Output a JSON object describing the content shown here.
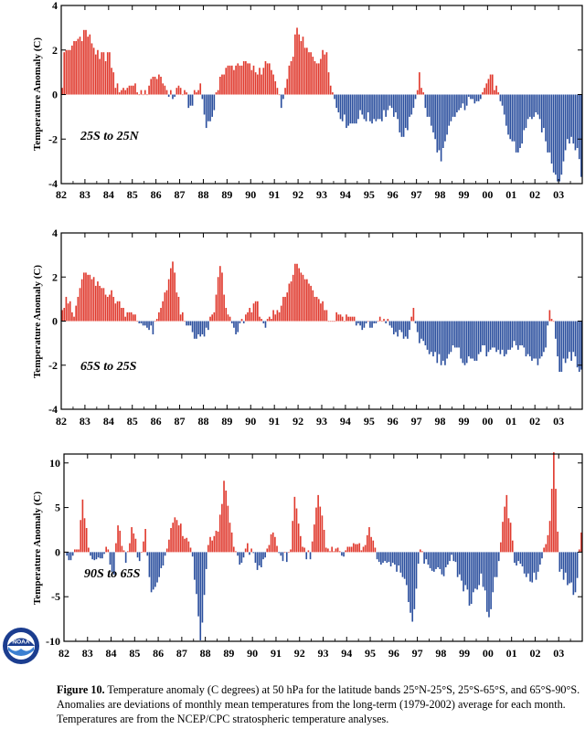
{
  "figure": {
    "ylabel": "Temperature Anomaly (C)",
    "x_tick_labels": [
      "82",
      "83",
      "84",
      "85",
      "86",
      "87",
      "88",
      "89",
      "90",
      "91",
      "92",
      "93",
      "94",
      "95",
      "96",
      "97",
      "98",
      "99",
      "00",
      "01",
      "02",
      "03"
    ],
    "colors": {
      "positive": "#e03a2e",
      "negative": "#2b4f9e"
    }
  },
  "caption": {
    "label": "Figure 10.",
    "text": "Temperature anomaly (C degrees) at 50 hPa for the latitude bands 25°N-25°S, 25°S-65°S, and 65°S-90°S. Anomalies are deviations of monthly mean temperatures from the long-term (1979-2002) average for each month. Temperatures are from the NCEP/CPC stratospheric temperature analyses."
  },
  "logo": {
    "text": "NOAA"
  },
  "chart_data": [
    {
      "type": "bar",
      "region_label": "25S to 25N",
      "ylabel": "Temperature Anomaly (C)",
      "x_start": "1982-01",
      "x_end": "2003-12",
      "xlim": [
        1982,
        2004
      ],
      "ylim": [
        -4,
        4
      ],
      "yticks": [
        -4,
        -2,
        0,
        2,
        4
      ],
      "anchors": [
        [
          "1982-01",
          0.3
        ],
        [
          "1982-02",
          1.9
        ],
        [
          "1982-06",
          2.2
        ],
        [
          "1982-10",
          2.6
        ],
        [
          "1983-01",
          2.9
        ],
        [
          "1983-04",
          2.3
        ],
        [
          "1983-08",
          1.6
        ],
        [
          "1984-01",
          1.9
        ],
        [
          "1984-04",
          0.3
        ],
        [
          "1984-07",
          0.2
        ],
        [
          "1984-12",
          0.4
        ],
        [
          "1985-06",
          0.0
        ],
        [
          "1985-12",
          0.8
        ],
        [
          "1986-05",
          0.4
        ],
        [
          "1986-09",
          -0.2
        ],
        [
          "1986-12",
          0.4
        ],
        [
          "1987-06",
          -0.5
        ],
        [
          "1987-11",
          0.5
        ],
        [
          "1988-02",
          -1.5
        ],
        [
          "1988-06",
          -0.7
        ],
        [
          "1988-09",
          0.8
        ],
        [
          "1989-03",
          1.3
        ],
        [
          "1989-09",
          1.5
        ],
        [
          "1990-03",
          1.0
        ],
        [
          "1990-09",
          1.4
        ],
        [
          "1991-01",
          0.6
        ],
        [
          "1991-04",
          -0.6
        ],
        [
          "1991-09",
          1.5
        ],
        [
          "1991-12",
          3.0
        ],
        [
          "1992-04",
          2.1
        ],
        [
          "1992-09",
          1.5
        ],
        [
          "1993-03",
          1.9
        ],
        [
          "1993-06",
          0.1
        ],
        [
          "1993-08",
          -0.6
        ],
        [
          "1994-02",
          -1.4
        ],
        [
          "1994-09",
          -0.9
        ],
        [
          "1995-04",
          -1.2
        ],
        [
          "1995-12",
          -0.6
        ],
        [
          "1996-06",
          -1.9
        ],
        [
          "1996-10",
          -0.9
        ],
        [
          "1997-01",
          0.2
        ],
        [
          "1997-02",
          1.0
        ],
        [
          "1997-05",
          -0.6
        ],
        [
          "1997-10",
          -2.0
        ],
        [
          "1998-01",
          -3.0
        ],
        [
          "1998-06",
          -1.2
        ],
        [
          "1998-11",
          -0.6
        ],
        [
          "1999-05",
          -0.2
        ],
        [
          "1999-10",
          0.1
        ],
        [
          "2000-02",
          0.9
        ],
        [
          "2000-07",
          -0.3
        ],
        [
          "2000-11",
          -1.8
        ],
        [
          "2001-04",
          -2.6
        ],
        [
          "2001-10",
          -1.0
        ],
        [
          "2002-03",
          -1.1
        ],
        [
          "2002-09",
          -3.1
        ],
        [
          "2003-01",
          -3.9
        ],
        [
          "2003-05",
          -2.0
        ],
        [
          "2003-10",
          -2.4
        ],
        [
          "2003-12",
          -3.7
        ]
      ]
    },
    {
      "type": "bar",
      "region_label": "65S to 25S",
      "ylabel": "Temperature Anomaly (C)",
      "x_start": "1982-01",
      "x_end": "2003-12",
      "xlim": [
        1982,
        2004
      ],
      "ylim": [
        -4,
        4
      ],
      "yticks": [
        -4,
        -2,
        0,
        2,
        4
      ],
      "anchors": [
        [
          "1982-01",
          0.5
        ],
        [
          "1982-03",
          1.1
        ],
        [
          "1982-07",
          0.2
        ],
        [
          "1982-11",
          1.9
        ],
        [
          "1983-02",
          2.1
        ],
        [
          "1983-06",
          1.6
        ],
        [
          "1983-10",
          1.5
        ],
        [
          "1984-03",
          1.1
        ],
        [
          "1984-07",
          0.6
        ],
        [
          "1984-11",
          0.4
        ],
        [
          "1985-03",
          0.0
        ],
        [
          "1985-07",
          -0.2
        ],
        [
          "1985-11",
          -0.6
        ],
        [
          "1986-03",
          0.6
        ],
        [
          "1986-09",
          2.7
        ],
        [
          "1987-01",
          0.3
        ],
        [
          "1987-05",
          -0.2
        ],
        [
          "1987-09",
          -0.8
        ],
        [
          "1988-01",
          -0.7
        ],
        [
          "1988-06",
          0.4
        ],
        [
          "1988-09",
          2.5
        ],
        [
          "1989-01",
          0.3
        ],
        [
          "1989-05",
          -0.6
        ],
        [
          "1989-10",
          0.3
        ],
        [
          "1990-03",
          0.9
        ],
        [
          "1990-08",
          -0.3
        ],
        [
          "1991-02",
          0.5
        ],
        [
          "1991-06",
          1.1
        ],
        [
          "1991-11",
          2.6
        ],
        [
          "1992-03",
          2.1
        ],
        [
          "1992-08",
          1.4
        ],
        [
          "1993-01",
          0.9
        ],
        [
          "1993-05",
          0.0
        ],
        [
          "1993-09",
          0.3
        ],
        [
          "1994-03",
          0.2
        ],
        [
          "1994-08",
          -0.2
        ],
        [
          "1995-02",
          -0.3
        ],
        [
          "1995-08",
          0.1
        ],
        [
          "1996-02",
          -0.5
        ],
        [
          "1996-08",
          -0.8
        ],
        [
          "1996-11",
          0.6
        ],
        [
          "1997-02",
          -1.0
        ],
        [
          "1997-08",
          -1.4
        ],
        [
          "1998-02",
          -1.8
        ],
        [
          "1998-08",
          -1.2
        ],
        [
          "1999-02",
          -1.9
        ],
        [
          "1999-08",
          -1.5
        ],
        [
          "2000-03",
          -1.2
        ],
        [
          "2000-09",
          -1.6
        ],
        [
          "2001-03",
          -1.1
        ],
        [
          "2001-09",
          -1.5
        ],
        [
          "2002-02",
          -2.0
        ],
        [
          "2002-06",
          -1.2
        ],
        [
          "2002-08",
          0.5
        ],
        [
          "2002-10",
          0.0
        ],
        [
          "2003-01",
          -2.3
        ],
        [
          "2003-06",
          -1.4
        ],
        [
          "2003-12",
          -2.2
        ]
      ]
    },
    {
      "type": "bar",
      "region_label": "90S to 65S",
      "ylabel": "Temperature Anomaly (C)",
      "x_start": "1982-01",
      "x_end": "2003-12",
      "xlim": [
        1982,
        2004
      ],
      "ylim": [
        -10,
        11
      ],
      "yticks": [
        -10,
        -5,
        0,
        5,
        10
      ],
      "anchors": [
        [
          "1982-01",
          0.0
        ],
        [
          "1982-04",
          -0.9
        ],
        [
          "1982-08",
          0.3
        ],
        [
          "1982-10",
          5.9
        ],
        [
          "1983-01",
          0.5
        ],
        [
          "1983-05",
          -0.8
        ],
        [
          "1983-10",
          0.6
        ],
        [
          "1984-02",
          -2.5
        ],
        [
          "1984-04",
          3.0
        ],
        [
          "1984-08",
          -1.2
        ],
        [
          "1984-11",
          2.8
        ],
        [
          "1985-03",
          -1.0
        ],
        [
          "1985-06",
          2.6
        ],
        [
          "1985-09",
          -4.5
        ],
        [
          "1986-01",
          -2.8
        ],
        [
          "1986-05",
          0.4
        ],
        [
          "1986-09",
          3.9
        ],
        [
          "1987-02",
          1.5
        ],
        [
          "1987-06",
          -0.5
        ],
        [
          "1987-10",
          -9.9
        ],
        [
          "1988-02",
          0.8
        ],
        [
          "1988-07",
          2.3
        ],
        [
          "1988-10",
          8.0
        ],
        [
          "1989-03",
          0.6
        ],
        [
          "1989-07",
          -1.2
        ],
        [
          "1989-10",
          1.0
        ],
        [
          "1990-03",
          -2.0
        ],
        [
          "1990-08",
          0.4
        ],
        [
          "1990-11",
          2.2
        ],
        [
          "1991-04",
          -1.0
        ],
        [
          "1991-08",
          0.3
        ],
        [
          "1991-10",
          6.2
        ],
        [
          "1992-02",
          0.6
        ],
        [
          "1992-06",
          -0.8
        ],
        [
          "1992-10",
          6.4
        ],
        [
          "1993-02",
          0.5
        ],
        [
          "1993-06",
          0.1
        ],
        [
          "1993-10",
          -0.4
        ],
        [
          "1994-03",
          0.6
        ],
        [
          "1994-08",
          0.2
        ],
        [
          "1994-12",
          2.8
        ],
        [
          "1995-04",
          -0.8
        ],
        [
          "1995-09",
          -1.2
        ],
        [
          "1996-01",
          -1.4
        ],
        [
          "1996-06",
          -3.0
        ],
        [
          "1996-10",
          -7.8
        ],
        [
          "1997-02",
          0.3
        ],
        [
          "1997-07",
          -1.8
        ],
        [
          "1998-01",
          -2.5
        ],
        [
          "1998-06",
          -0.3
        ],
        [
          "1998-11",
          -3.2
        ],
        [
          "1999-04",
          -5.8
        ],
        [
          "1999-09",
          -2.4
        ],
        [
          "2000-01",
          -7.3
        ],
        [
          "2000-06",
          -1.0
        ],
        [
          "2000-10",
          6.4
        ],
        [
          "2001-02",
          -1.2
        ],
        [
          "2001-07",
          -2.4
        ],
        [
          "2002-01",
          -3.1
        ],
        [
          "2002-05",
          0.5
        ],
        [
          "2002-08",
          3.5
        ],
        [
          "2002-10",
          11.2
        ],
        [
          "2003-01",
          -2.2
        ],
        [
          "2003-06",
          -3.5
        ],
        [
          "2003-09",
          -4.5
        ],
        [
          "2003-12",
          2.2
        ]
      ]
    }
  ]
}
